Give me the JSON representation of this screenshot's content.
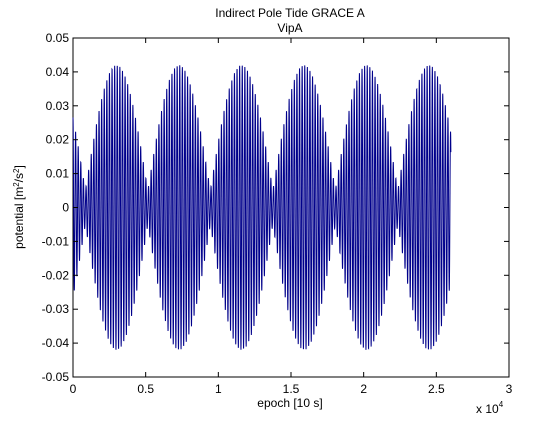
{
  "chart_data": {
    "type": "line",
    "title": "Indirect Pole Tide GRACE A",
    "subtitle": "VipA",
    "xlabel": "epoch [10 s]",
    "ylabel": {
      "text": "potential [m",
      "sup1": "2",
      "mid": "/s",
      "sup2": "2",
      "end": "]"
    },
    "x_multiplier": {
      "base": "x 10",
      "exp": "4"
    },
    "xlim": [
      0,
      3
    ],
    "ylim": [
      -0.05,
      0.05
    ],
    "xticks": [
      0,
      0.5,
      1,
      1.5,
      2,
      2.5,
      3
    ],
    "xtick_labels": [
      "0",
      "0.5",
      "1",
      "1.5",
      "2",
      "2.5",
      "3"
    ],
    "yticks": [
      -0.05,
      -0.04,
      -0.03,
      -0.02,
      -0.01,
      0,
      0.01,
      0.02,
      0.03,
      0.04,
      0.05
    ],
    "ytick_labels": [
      "-0.05",
      "-0.04",
      "-0.03",
      "-0.02",
      "-0.01",
      "0",
      "0.01",
      "0.02",
      "0.03",
      "0.04",
      "0.05"
    ],
    "grid": false,
    "series_color": "#00008b",
    "series": [
      {
        "x_range": [
          0,
          2.6
        ],
        "envelope_peaks_x": [
          0.3,
          0.73,
          1.15,
          1.57,
          2.0,
          2.42
        ],
        "envelope_nodes_x": [
          0.08,
          0.5,
          0.92,
          1.35,
          1.77,
          2.2
        ],
        "amplitude": 0.042,
        "oscillations_per_beat": 12
      }
    ]
  }
}
